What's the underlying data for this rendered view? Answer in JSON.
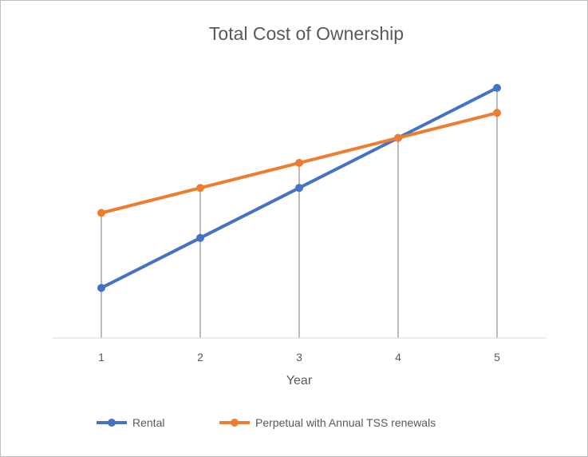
{
  "chart_data": {
    "type": "line",
    "title": "Total Cost of Ownership",
    "xlabel": "Year",
    "ylabel": "",
    "categories": [
      "1",
      "2",
      "3",
      "4",
      "5"
    ],
    "ylim": [
      0,
      10
    ],
    "grid": false,
    "drop_lines": true,
    "legend_position": "bottom",
    "series": [
      {
        "name": "Rental",
        "color": "#4472C4",
        "values": [
          2,
          4,
          6,
          8,
          10
        ]
      },
      {
        "name": "Perpetual with Annual TSS renewals",
        "color": "#ED7D31",
        "values": [
          5,
          6,
          7,
          8,
          9
        ]
      }
    ],
    "colors": {
      "axis": "#d9d9d9",
      "drop_line": "#a5a5a5",
      "text": "#595959"
    }
  }
}
